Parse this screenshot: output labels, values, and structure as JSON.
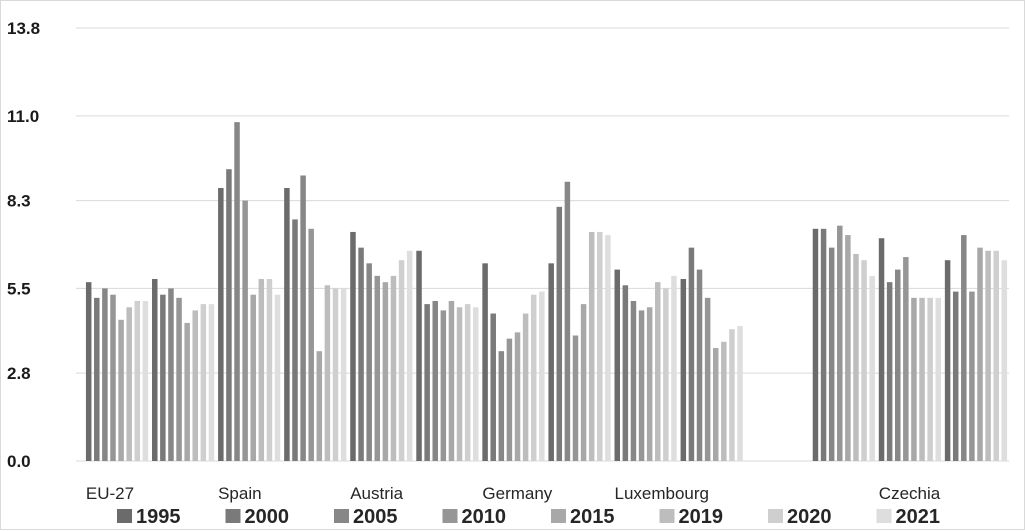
{
  "chart_data": {
    "type": "bar",
    "title": "",
    "xlabel": "",
    "ylabel": "",
    "ylim": [
      0,
      13.8
    ],
    "yticks": [
      "0.0",
      "2.8",
      "5.5",
      "8.3",
      "11.0",
      "13.8"
    ],
    "grid": true,
    "legend_position": "bottom",
    "category_labels": [
      {
        "label": "EU-27",
        "slot": 0
      },
      {
        "label": "Spain",
        "slot": 2
      },
      {
        "label": "Austria",
        "slot": 4
      },
      {
        "label": "Germany",
        "slot": 6
      },
      {
        "label": "Luxembourg",
        "slot": 8
      },
      {
        "label": "Czechia",
        "slot": 12
      }
    ],
    "slots": 14,
    "groups": [
      [
        5.7,
        5.2,
        5.5,
        5.3,
        4.5,
        4.9,
        5.1,
        5.1
      ],
      [
        5.8,
        5.3,
        5.5,
        5.2,
        4.4,
        4.8,
        5.0,
        5.0
      ],
      [
        8.7,
        9.3,
        10.8,
        8.3,
        5.3,
        5.8,
        5.8,
        5.3
      ],
      [
        8.7,
        7.7,
        9.1,
        7.4,
        3.5,
        5.6,
        5.5,
        5.5
      ],
      [
        7.3,
        6.8,
        6.3,
        5.9,
        5.7,
        5.9,
        6.4,
        6.7
      ],
      [
        6.7,
        5.0,
        5.1,
        4.8,
        5.1,
        4.9,
        5.0,
        4.9
      ],
      [
        6.3,
        4.7,
        3.5,
        3.9,
        4.1,
        4.7,
        5.3,
        5.4
      ],
      [
        6.3,
        8.1,
        8.9,
        4.0,
        5.0,
        7.3,
        7.3,
        7.2
      ],
      [
        6.1,
        5.6,
        5.1,
        4.8,
        4.9,
        5.7,
        5.5,
        5.9
      ],
      [
        5.8,
        6.8,
        6.1,
        5.2,
        3.6,
        3.8,
        4.2,
        4.3
      ],
      null,
      [
        7.4,
        7.4,
        6.8,
        7.5,
        7.2,
        6.6,
        6.4,
        5.9
      ],
      [
        7.1,
        5.7,
        6.1,
        6.5,
        5.2,
        5.2,
        5.2,
        5.2
      ],
      [
        6.4,
        5.4,
        7.2,
        5.4,
        6.8,
        6.7,
        6.7,
        6.4
      ]
    ],
    "series": [
      {
        "name": "1995",
        "color": "#6b6b6b"
      },
      {
        "name": "2000",
        "color": "#7a7a7a"
      },
      {
        "name": "2005",
        "color": "#878787"
      },
      {
        "name": "2010",
        "color": "#969696"
      },
      {
        "name": "2015",
        "color": "#a8a8a8"
      },
      {
        "name": "2019",
        "color": "#bdbdbd"
      },
      {
        "name": "2020",
        "color": "#cfcfcf"
      },
      {
        "name": "2021",
        "color": "#dedede"
      }
    ]
  }
}
